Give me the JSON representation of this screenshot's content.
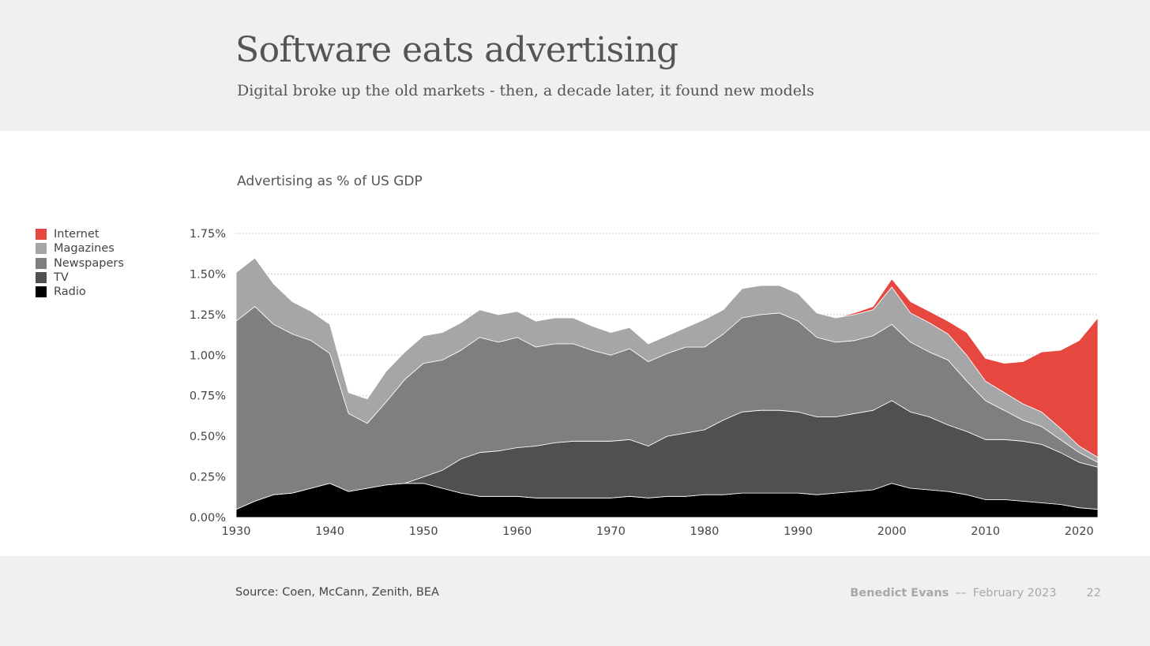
{
  "header": {
    "title": "Software eats advertising",
    "subtitle": "Digital broke up the old markets - then, a decade later, it found new models"
  },
  "legend": [
    {
      "label": "Internet",
      "color": "#e6473e"
    },
    {
      "label": "Magazines",
      "color": "#a6a6a8"
    },
    {
      "label": "Newspapers",
      "color": "#7f7f81"
    },
    {
      "label": "TV",
      "color": "#505052"
    },
    {
      "label": "Radio",
      "color": "#000000"
    }
  ],
  "footer": {
    "source": "Source: Coen, McCann, Zenith, BEA",
    "author": "Benedict Evans",
    "separator": "––",
    "date": "February 2023",
    "page": "22"
  },
  "chart_data": {
    "type": "area",
    "stacked": true,
    "title": "Advertising as % of US GDP",
    "ylim": [
      0,
      1.75
    ],
    "xlim": [
      1930,
      2022
    ],
    "y_ticks": [
      0,
      0.25,
      0.5,
      0.75,
      1.0,
      1.25,
      1.5,
      1.75
    ],
    "y_tick_labels": [
      "0.00%",
      "0.25%",
      "0.50%",
      "0.75%",
      "1.00%",
      "1.25%",
      "1.50%",
      "1.75%"
    ],
    "x_ticks": [
      1930,
      1940,
      1950,
      1960,
      1970,
      1980,
      1990,
      2000,
      2010,
      2020
    ],
    "x_tick_labels": [
      "1930",
      "1940",
      "1950",
      "1960",
      "1970",
      "1980",
      "1990",
      "2000",
      "2010",
      "2020"
    ],
    "grid": "horizontal dotted",
    "legend_position": "left",
    "x": [
      1930,
      1932,
      1934,
      1936,
      1938,
      1940,
      1942,
      1944,
      1946,
      1948,
      1950,
      1952,
      1954,
      1956,
      1958,
      1960,
      1962,
      1964,
      1966,
      1968,
      1970,
      1972,
      1974,
      1976,
      1978,
      1980,
      1982,
      1984,
      1986,
      1988,
      1990,
      1992,
      1994,
      1996,
      1998,
      2000,
      2002,
      2004,
      2006,
      2008,
      2010,
      2012,
      2014,
      2016,
      2018,
      2020,
      2022
    ],
    "series": [
      {
        "name": "Radio",
        "color": "#000000",
        "values": [
          0.05,
          0.1,
          0.14,
          0.15,
          0.18,
          0.21,
          0.16,
          0.18,
          0.2,
          0.21,
          0.21,
          0.18,
          0.15,
          0.13,
          0.13,
          0.13,
          0.12,
          0.12,
          0.12,
          0.12,
          0.12,
          0.13,
          0.12,
          0.13,
          0.13,
          0.14,
          0.14,
          0.15,
          0.15,
          0.15,
          0.15,
          0.14,
          0.15,
          0.16,
          0.17,
          0.21,
          0.18,
          0.17,
          0.16,
          0.14,
          0.11,
          0.11,
          0.1,
          0.09,
          0.08,
          0.06,
          0.05
        ]
      },
      {
        "name": "TV",
        "color": "#505052",
        "values": [
          0,
          0,
          0,
          0,
          0,
          0,
          0,
          0,
          0,
          0,
          0.04,
          0.11,
          0.21,
          0.27,
          0.28,
          0.3,
          0.32,
          0.34,
          0.35,
          0.35,
          0.35,
          0.35,
          0.32,
          0.37,
          0.39,
          0.4,
          0.46,
          0.5,
          0.51,
          0.51,
          0.5,
          0.48,
          0.47,
          0.48,
          0.49,
          0.51,
          0.47,
          0.45,
          0.41,
          0.39,
          0.37,
          0.37,
          0.37,
          0.36,
          0.32,
          0.28,
          0.26
        ]
      },
      {
        "name": "Newspapers",
        "color": "#7f7f81",
        "values": [
          1.16,
          1.2,
          1.05,
          0.98,
          0.91,
          0.8,
          0.48,
          0.4,
          0.51,
          0.64,
          0.7,
          0.68,
          0.67,
          0.71,
          0.67,
          0.68,
          0.61,
          0.61,
          0.6,
          0.56,
          0.53,
          0.56,
          0.52,
          0.51,
          0.53,
          0.51,
          0.53,
          0.58,
          0.59,
          0.6,
          0.56,
          0.49,
          0.46,
          0.45,
          0.46,
          0.47,
          0.43,
          0.4,
          0.4,
          0.31,
          0.24,
          0.18,
          0.13,
          0.11,
          0.08,
          0.06,
          0.03
        ]
      },
      {
        "name": "Magazines",
        "color": "#a6a6a8",
        "values": [
          0.3,
          0.3,
          0.25,
          0.2,
          0.18,
          0.18,
          0.13,
          0.15,
          0.19,
          0.17,
          0.17,
          0.17,
          0.17,
          0.17,
          0.17,
          0.16,
          0.16,
          0.16,
          0.16,
          0.15,
          0.14,
          0.13,
          0.11,
          0.11,
          0.12,
          0.17,
          0.15,
          0.18,
          0.18,
          0.17,
          0.17,
          0.15,
          0.15,
          0.16,
          0.16,
          0.23,
          0.18,
          0.18,
          0.16,
          0.16,
          0.12,
          0.11,
          0.1,
          0.09,
          0.07,
          0.04,
          0.03
        ]
      },
      {
        "name": "Internet",
        "color": "#e6473e",
        "values": [
          0,
          0,
          0,
          0,
          0,
          0,
          0,
          0,
          0,
          0,
          0,
          0,
          0,
          0,
          0,
          0,
          0,
          0,
          0,
          0,
          0,
          0,
          0,
          0,
          0,
          0,
          0,
          0,
          0,
          0,
          0,
          0,
          0,
          0.01,
          0.02,
          0.05,
          0.07,
          0.07,
          0.08,
          0.14,
          0.14,
          0.18,
          0.26,
          0.37,
          0.48,
          0.65,
          0.86
        ]
      }
    ]
  }
}
